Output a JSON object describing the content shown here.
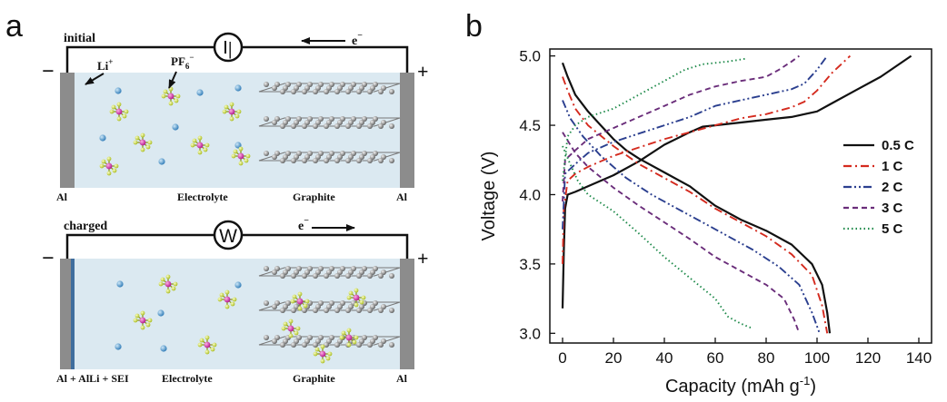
{
  "panel_a": {
    "label": "a",
    "top": {
      "state": "initial",
      "device_symbol": "|",
      "electron": "e",
      "electron_sup": "−",
      "li_ion": "Li",
      "li_sup": "+",
      "pf6": "PF",
      "pf6_sub": "6",
      "pf6_sup": "−",
      "left_electrode": "Al",
      "electrolyte": "Electrolyte",
      "graphite": "Graphite",
      "right_electrode": "Al",
      "minus": "−",
      "plus": "+"
    },
    "bottom": {
      "state": "charged",
      "device_symbol": "W",
      "electron": "e",
      "electron_sup": "−",
      "left_electrode": "Al + AlLi + SEI",
      "electrolyte": "Electrolyte",
      "graphite": "Graphite",
      "right_electrode": "Al",
      "minus": "−",
      "plus": "+"
    }
  },
  "panel_b": {
    "label": "b"
  },
  "chart_data": {
    "type": "line",
    "title": "",
    "xlabel": "Capacity (mAh g",
    "xlabel_sup": "-1",
    "xlabel_close": ")",
    "ylabel": "Voltage (V)",
    "xlim": [
      -5,
      145
    ],
    "ylim": [
      2.93,
      5.05
    ],
    "xticks": [
      0,
      20,
      40,
      60,
      80,
      100,
      120,
      140
    ],
    "yticks": [
      3.0,
      3.5,
      4.0,
      4.5,
      5.0
    ],
    "ytick_labels": [
      "3.0",
      "3.5",
      "4.0",
      "4.5",
      "5.0"
    ],
    "grid": false,
    "legend_position": "right",
    "series": [
      {
        "name": "0.5 C",
        "color": "#111111",
        "dash": "solid",
        "charge": [
          [
            0,
            3.18
          ],
          [
            0.5,
            3.6
          ],
          [
            1,
            3.9
          ],
          [
            2,
            4.0
          ],
          [
            5,
            4.02
          ],
          [
            10,
            4.06
          ],
          [
            20,
            4.14
          ],
          [
            30,
            4.24
          ],
          [
            40,
            4.36
          ],
          [
            50,
            4.45
          ],
          [
            55,
            4.49
          ],
          [
            60,
            4.5
          ],
          [
            70,
            4.52
          ],
          [
            80,
            4.54
          ],
          [
            90,
            4.56
          ],
          [
            100,
            4.6
          ],
          [
            105,
            4.65
          ],
          [
            115,
            4.75
          ],
          [
            125,
            4.85
          ],
          [
            137,
            5.0
          ]
        ],
        "discharge": [
          [
            0,
            4.95
          ],
          [
            2,
            4.85
          ],
          [
            5,
            4.72
          ],
          [
            10,
            4.6
          ],
          [
            15,
            4.5
          ],
          [
            20,
            4.4
          ],
          [
            25,
            4.32
          ],
          [
            30,
            4.26
          ],
          [
            40,
            4.16
          ],
          [
            50,
            4.06
          ],
          [
            60,
            3.92
          ],
          [
            70,
            3.82
          ],
          [
            80,
            3.74
          ],
          [
            90,
            3.64
          ],
          [
            98,
            3.5
          ],
          [
            102,
            3.35
          ],
          [
            104,
            3.15
          ],
          [
            105,
            3.0
          ]
        ]
      },
      {
        "name": "1 C",
        "color": "#d42a1e",
        "dash": "dashdot",
        "charge": [
          [
            0,
            3.5
          ],
          [
            0.5,
            3.9
          ],
          [
            2,
            4.1
          ],
          [
            5,
            4.15
          ],
          [
            10,
            4.2
          ],
          [
            20,
            4.28
          ],
          [
            30,
            4.34
          ],
          [
            40,
            4.4
          ],
          [
            50,
            4.45
          ],
          [
            60,
            4.5
          ],
          [
            70,
            4.55
          ],
          [
            80,
            4.58
          ],
          [
            90,
            4.63
          ],
          [
            95,
            4.67
          ],
          [
            100,
            4.75
          ],
          [
            106,
            4.88
          ],
          [
            113,
            5.0
          ]
        ],
        "discharge": [
          [
            0,
            4.85
          ],
          [
            2,
            4.75
          ],
          [
            5,
            4.62
          ],
          [
            10,
            4.5
          ],
          [
            20,
            4.35
          ],
          [
            30,
            4.22
          ],
          [
            40,
            4.12
          ],
          [
            50,
            4.02
          ],
          [
            60,
            3.9
          ],
          [
            70,
            3.8
          ],
          [
            80,
            3.7
          ],
          [
            90,
            3.57
          ],
          [
            98,
            3.42
          ],
          [
            102,
            3.2
          ],
          [
            104,
            3.0
          ]
        ]
      },
      {
        "name": "2 C",
        "color": "#2b3f8f",
        "dash": "dashdotdot",
        "charge": [
          [
            0,
            3.75
          ],
          [
            1,
            4.15
          ],
          [
            5,
            4.22
          ],
          [
            10,
            4.3
          ],
          [
            20,
            4.38
          ],
          [
            30,
            4.44
          ],
          [
            40,
            4.5
          ],
          [
            50,
            4.56
          ],
          [
            60,
            4.64
          ],
          [
            70,
            4.68
          ],
          [
            80,
            4.72
          ],
          [
            90,
            4.76
          ],
          [
            95,
            4.8
          ],
          [
            100,
            4.9
          ],
          [
            104,
            5.0
          ]
        ],
        "discharge": [
          [
            0,
            4.68
          ],
          [
            3,
            4.55
          ],
          [
            8,
            4.42
          ],
          [
            15,
            4.28
          ],
          [
            25,
            4.12
          ],
          [
            35,
            4.0
          ],
          [
            45,
            3.9
          ],
          [
            55,
            3.8
          ],
          [
            65,
            3.7
          ],
          [
            75,
            3.6
          ],
          [
            85,
            3.48
          ],
          [
            93,
            3.35
          ],
          [
            98,
            3.15
          ],
          [
            101,
            3.0
          ]
        ]
      },
      {
        "name": "3 C",
        "color": "#6a2d7a",
        "dash": "dashed",
        "charge": [
          [
            0,
            3.95
          ],
          [
            1,
            4.25
          ],
          [
            5,
            4.32
          ],
          [
            10,
            4.4
          ],
          [
            20,
            4.48
          ],
          [
            30,
            4.56
          ],
          [
            40,
            4.64
          ],
          [
            50,
            4.72
          ],
          [
            60,
            4.78
          ],
          [
            70,
            4.82
          ],
          [
            80,
            4.85
          ],
          [
            85,
            4.9
          ],
          [
            90,
            4.96
          ],
          [
            93,
            5.0
          ]
        ],
        "discharge": [
          [
            0,
            4.45
          ],
          [
            5,
            4.3
          ],
          [
            10,
            4.2
          ],
          [
            20,
            4.05
          ],
          [
            30,
            3.92
          ],
          [
            40,
            3.8
          ],
          [
            50,
            3.68
          ],
          [
            60,
            3.55
          ],
          [
            70,
            3.45
          ],
          [
            80,
            3.35
          ],
          [
            87,
            3.25
          ],
          [
            91,
            3.1
          ],
          [
            93,
            3.0
          ]
        ]
      },
      {
        "name": "5 C",
        "color": "#1e8a4a",
        "dash": "dotted",
        "charge": [
          [
            0,
            4.1
          ],
          [
            2,
            4.42
          ],
          [
            5,
            4.5
          ],
          [
            10,
            4.56
          ],
          [
            20,
            4.62
          ],
          [
            30,
            4.72
          ],
          [
            40,
            4.82
          ],
          [
            48,
            4.9
          ],
          [
            55,
            4.94
          ],
          [
            65,
            4.96
          ],
          [
            72,
            4.98
          ]
        ],
        "discharge": [
          [
            0,
            4.35
          ],
          [
            3,
            4.22
          ],
          [
            6,
            4.1
          ],
          [
            10,
            4.0
          ],
          [
            20,
            3.88
          ],
          [
            30,
            3.72
          ],
          [
            40,
            3.55
          ],
          [
            50,
            3.4
          ],
          [
            60,
            3.25
          ],
          [
            65,
            3.12
          ],
          [
            70,
            3.07
          ],
          [
            74,
            3.04
          ]
        ]
      }
    ]
  }
}
